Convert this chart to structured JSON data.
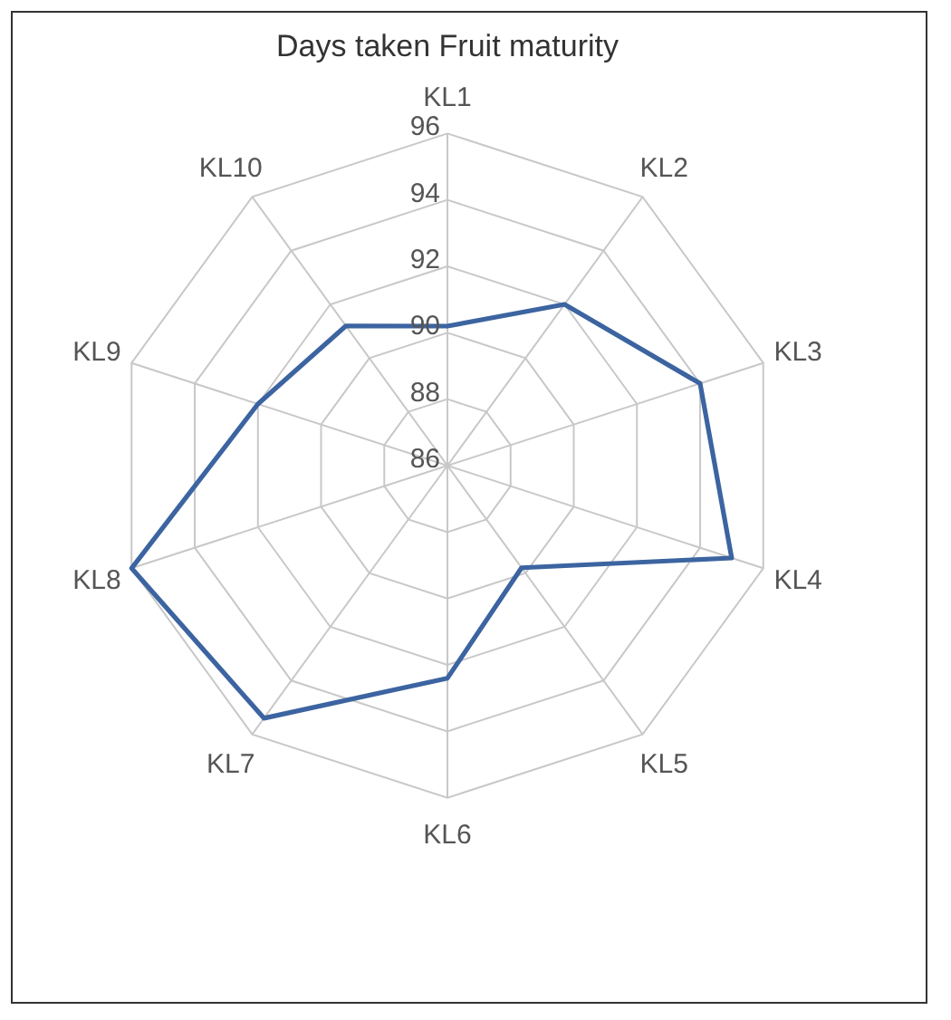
{
  "chart_data": {
    "type": "radar",
    "title": "Days taken  Fruit maturity",
    "categories": [
      "KL1",
      "KL2",
      "KL3",
      "KL4",
      "KL5",
      "KL6",
      "KL7",
      "KL8",
      "KL9",
      "KL10"
    ],
    "series": [
      {
        "color": "#3c64a0",
        "values": [
          90.2,
          92,
          94,
          95,
          89.8,
          92.4,
          95.4,
          96,
          92,
          91.2
        ]
      }
    ],
    "ylim": [
      86,
      96
    ],
    "yticks": [
      86,
      88,
      90,
      92,
      94,
      96
    ],
    "grid": true
  }
}
